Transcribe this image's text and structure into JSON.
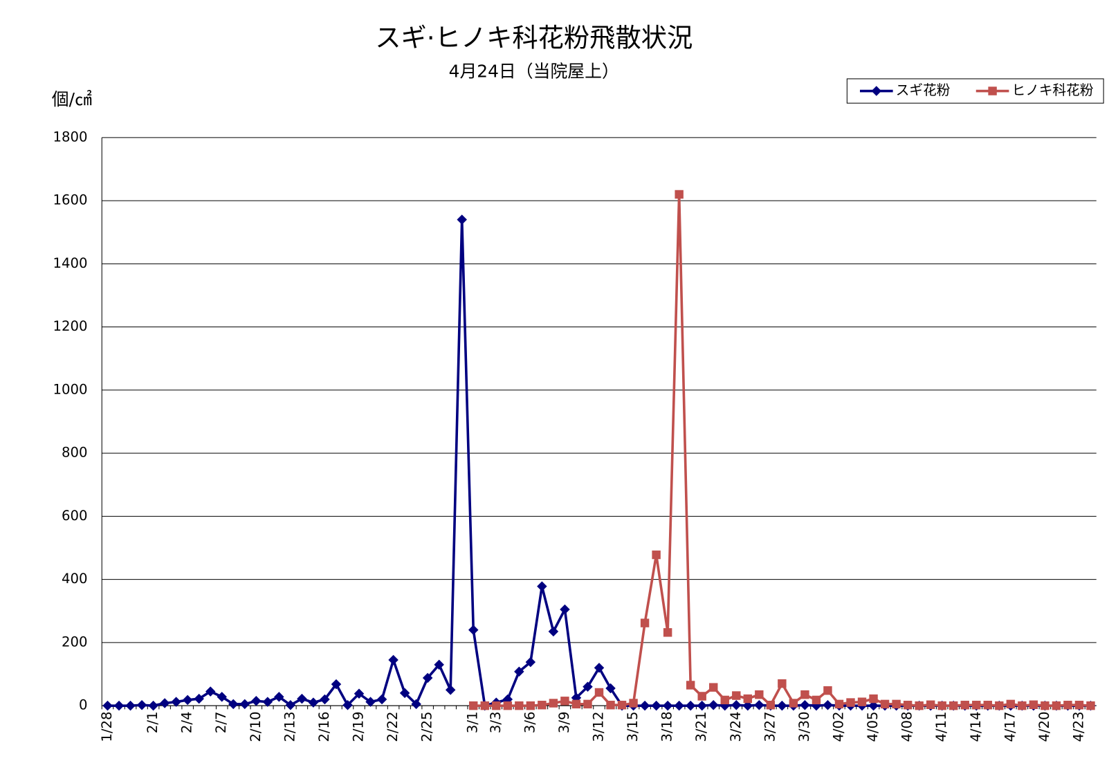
{
  "chart_data": {
    "type": "line",
    "title": "スギ·ヒノキ科花粉飛散状況",
    "subtitle": "4月24日（当院屋上）",
    "ylabel": "個/㎠",
    "categories": [
      "1/28",
      null,
      null,
      null,
      "2/1",
      null,
      null,
      "2/4",
      null,
      null,
      "2/7",
      null,
      null,
      "2/10",
      null,
      null,
      "2/13",
      null,
      null,
      "2/16",
      null,
      null,
      "2/19",
      null,
      null,
      "2/22",
      null,
      null,
      "2/25",
      null,
      null,
      null,
      "3/1",
      null,
      "3/3",
      null,
      null,
      "3/6",
      null,
      null,
      "3/9",
      null,
      null,
      "3/12",
      null,
      null,
      "3/15",
      null,
      null,
      "3/18",
      null,
      null,
      "3/21",
      null,
      null,
      "3/24",
      null,
      null,
      "3/27",
      null,
      null,
      "3/30",
      null,
      null,
      "4/02",
      null,
      null,
      "4/05",
      null,
      null,
      "4/08",
      null,
      null,
      "4/11",
      null,
      null,
      "4/14",
      null,
      null,
      "4/17",
      null,
      null,
      "4/20",
      null,
      null,
      "4/23",
      null
    ],
    "series": [
      {
        "name": "スギ花粉",
        "color": "#000080",
        "marker": "diamond",
        "values": [
          0,
          0,
          0,
          2,
          0,
          8,
          12,
          18,
          22,
          45,
          28,
          5,
          5,
          15,
          12,
          28,
          2,
          22,
          10,
          20,
          68,
          2,
          38,
          12,
          20,
          145,
          40,
          5,
          88,
          130,
          50,
          1540,
          240,
          0,
          10,
          20,
          108,
          138,
          378,
          235,
          305,
          25,
          60,
          120,
          55,
          0,
          0,
          0,
          0,
          0,
          0,
          0,
          0,
          2,
          0,
          2,
          0,
          2,
          0,
          0,
          0,
          2,
          0,
          2,
          0,
          0,
          0,
          0,
          0,
          0,
          0,
          0,
          0,
          0,
          0,
          0,
          0,
          0,
          0,
          0,
          0,
          0,
          0,
          0,
          0,
          0,
          0
        ]
      },
      {
        "name": "ヒノキ科花粉",
        "color": "#c0504d",
        "marker": "square",
        "values": [
          null,
          null,
          null,
          null,
          null,
          null,
          null,
          null,
          null,
          null,
          null,
          null,
          null,
          null,
          null,
          null,
          null,
          null,
          null,
          null,
          null,
          null,
          null,
          null,
          null,
          null,
          null,
          null,
          null,
          null,
          null,
          null,
          0,
          0,
          0,
          0,
          0,
          0,
          2,
          8,
          15,
          5,
          5,
          42,
          2,
          2,
          8,
          262,
          478,
          232,
          1620,
          65,
          30,
          58,
          18,
          32,
          22,
          35,
          2,
          70,
          8,
          35,
          18,
          48,
          5,
          10,
          12,
          22,
          5,
          5,
          2,
          0,
          3,
          0,
          0,
          2,
          2,
          2,
          0,
          5,
          0,
          3,
          0,
          0,
          2,
          2,
          0
        ]
      }
    ],
    "ylim": [
      0,
      1800
    ],
    "yticks": [
      0,
      200,
      400,
      600,
      800,
      1000,
      1200,
      1400,
      1600,
      1800
    ],
    "grid": true,
    "legend": "top-right"
  }
}
